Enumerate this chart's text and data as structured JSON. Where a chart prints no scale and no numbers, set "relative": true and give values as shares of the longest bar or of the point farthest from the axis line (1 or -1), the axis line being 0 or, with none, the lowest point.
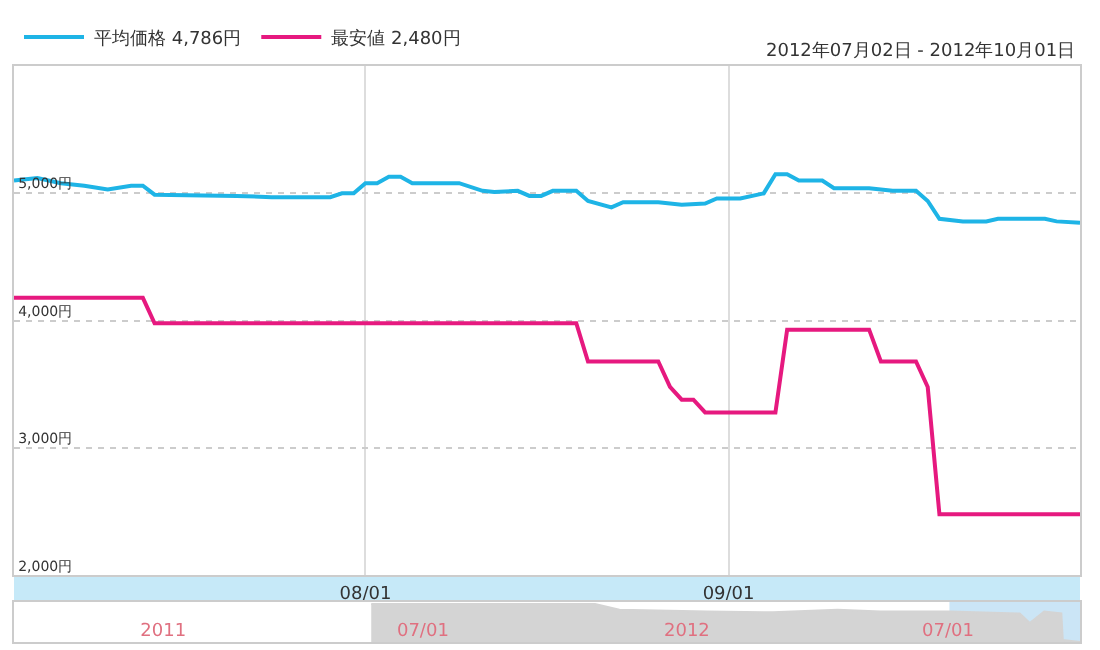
{
  "chart_data": [
    {
      "type": "line",
      "subtitle": "2012年07月02日 - 2012年10月01日",
      "legend": "top left",
      "grid": true,
      "ylim": [
        2000,
        6000
      ],
      "yticks": [
        {
          "value": 2000,
          "label": "2,000円"
        },
        {
          "value": 3000,
          "label": "3,000円"
        },
        {
          "value": 4000,
          "label": "4,000円"
        },
        {
          "value": 5000,
          "label": "5,000円"
        }
      ],
      "xlim": [
        "2012-07-02",
        "2012-10-01"
      ],
      "xticks": [
        {
          "value": "2012-08-01",
          "label": "08/01"
        },
        {
          "value": "2012-09-01",
          "label": "09/01"
        }
      ],
      "series": [
        {
          "name": "平均価格 4,786円",
          "color": "#1eb4e6",
          "x": [
            "2012-07-02",
            "2012-07-04",
            "2012-07-06",
            "2012-07-08",
            "2012-07-10",
            "2012-07-12",
            "2012-07-13",
            "2012-07-14",
            "2012-07-21",
            "2012-07-24",
            "2012-07-29",
            "2012-07-30",
            "2012-07-31",
            "2012-08-01",
            "2012-08-02",
            "2012-08-03",
            "2012-08-04",
            "2012-08-05",
            "2012-08-09",
            "2012-08-11",
            "2012-08-12",
            "2012-08-14",
            "2012-08-15",
            "2012-08-16",
            "2012-08-17",
            "2012-08-19",
            "2012-08-20",
            "2012-08-22",
            "2012-08-23",
            "2012-08-26",
            "2012-08-28",
            "2012-08-30",
            "2012-08-31",
            "2012-09-02",
            "2012-09-04",
            "2012-09-05",
            "2012-09-06",
            "2012-09-07",
            "2012-09-09",
            "2012-09-10",
            "2012-09-13",
            "2012-09-15",
            "2012-09-17",
            "2012-09-18",
            "2012-09-19",
            "2012-09-21",
            "2012-09-23",
            "2012-09-24",
            "2012-09-28",
            "2012-09-29",
            "2012-10-01"
          ],
          "values": [
            5100,
            5120,
            5080,
            5060,
            5030,
            5060,
            5060,
            4990,
            4980,
            4970,
            4970,
            5000,
            5000,
            5080,
            5080,
            5130,
            5130,
            5080,
            5080,
            5020,
            5010,
            5020,
            4980,
            4980,
            5020,
            5020,
            4940,
            4890,
            4930,
            4930,
            4910,
            4920,
            4960,
            4960,
            5000,
            5150,
            5150,
            5100,
            5100,
            5040,
            5040,
            5020,
            5020,
            4940,
            4800,
            4780,
            4780,
            4800,
            4800,
            4780,
            4770
          ]
        },
        {
          "name": "最安値 2,480円",
          "color": "#e6197f",
          "x": [
            "2012-07-02",
            "2012-07-13",
            "2012-07-14",
            "2012-08-19",
            "2012-08-20",
            "2012-08-26",
            "2012-08-27",
            "2012-08-28",
            "2012-08-29",
            "2012-08-30",
            "2012-09-05",
            "2012-09-06",
            "2012-09-13",
            "2012-09-14",
            "2012-09-17",
            "2012-09-18",
            "2012-09-19",
            "2012-10-01"
          ],
          "values": [
            4180,
            4180,
            3980,
            3980,
            3680,
            3680,
            3480,
            3380,
            3380,
            3280,
            3280,
            3930,
            3930,
            3680,
            3680,
            3480,
            2480,
            2480
          ]
        }
      ]
    },
    {
      "type": "area",
      "relative": true,
      "tick_labels": "x",
      "xlim": [
        "2010-09-19",
        "2012-10-01"
      ],
      "xticks": [
        {
          "value": "2011-01-01",
          "label": "2011"
        },
        {
          "value": "2011-07-01",
          "label": "07/01"
        },
        {
          "value": "2012-01-01",
          "label": "2012"
        },
        {
          "value": "2012-07-01",
          "label": "07/01"
        }
      ],
      "bands": [
        {
          "axis": "x",
          "from": "2012-07-02",
          "to": "2012-10-01",
          "color": "#a8d4f0"
        }
      ],
      "series": [
        {
          "color": "#d4d4d4",
          "x": [
            "2011-05-26",
            "2011-10-29",
            "2011-11-15",
            "2012-01-15",
            "2012-03-01",
            "2012-04-15",
            "2012-05-15",
            "2012-07-02",
            "2012-08-20",
            "2012-08-27",
            "2012-09-06",
            "2012-09-18",
            "2012-09-19",
            "2012-10-01"
          ],
          "values": [
            1.0,
            1.0,
            0.85,
            0.8,
            0.78,
            0.85,
            0.8,
            0.8,
            0.75,
            0.5,
            0.8,
            0.75,
            0.05,
            0.0
          ]
        }
      ]
    }
  ]
}
